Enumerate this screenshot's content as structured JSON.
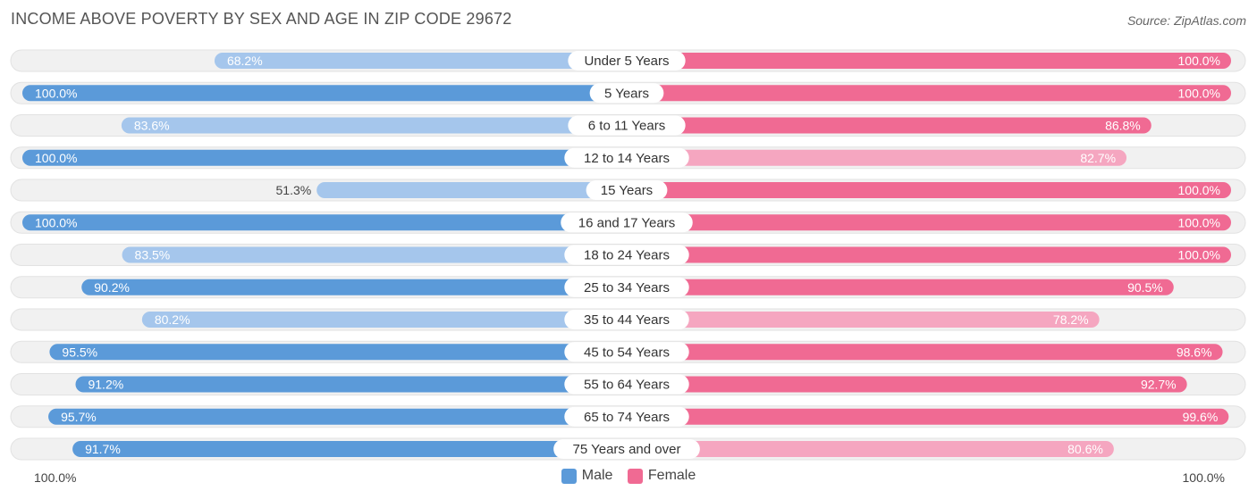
{
  "header": {
    "title": "INCOME ABOVE POVERTY BY SEX AND AGE IN ZIP CODE 29672",
    "source": "Source: ZipAtlas.com"
  },
  "colors": {
    "male_strong": "#5b9ad9",
    "male_light": "#a5c6ec",
    "female_strong": "#f06a93",
    "female_light": "#f5a6c0",
    "row_bg": "#f1f1f1"
  },
  "chart_data": {
    "type": "bar",
    "orientation": "horizontal-diverging",
    "categories": [
      "Under 5 Years",
      "5 Years",
      "6 to 11 Years",
      "12 to 14 Years",
      "15 Years",
      "16 and 17 Years",
      "18 to 24 Years",
      "25 to 34 Years",
      "35 to 44 Years",
      "45 to 54 Years",
      "55 to 64 Years",
      "65 to 74 Years",
      "75 Years and over"
    ],
    "series": [
      {
        "name": "Male",
        "values": [
          68.2,
          100.0,
          83.6,
          100.0,
          51.3,
          100.0,
          83.5,
          90.2,
          80.2,
          95.5,
          91.2,
          95.7,
          91.7
        ]
      },
      {
        "name": "Female",
        "values": [
          100.0,
          100.0,
          86.8,
          82.7,
          100.0,
          100.0,
          100.0,
          90.5,
          78.2,
          98.6,
          92.7,
          99.6,
          80.6
        ]
      }
    ],
    "value_labels": {
      "Male": [
        "68.2%",
        "100.0%",
        "83.6%",
        "100.0%",
        "51.3%",
        "100.0%",
        "83.5%",
        "90.2%",
        "80.2%",
        "95.5%",
        "91.2%",
        "95.7%",
        "91.7%"
      ],
      "Female": [
        "100.0%",
        "100.0%",
        "86.8%",
        "82.7%",
        "100.0%",
        "100.0%",
        "100.0%",
        "90.5%",
        "78.2%",
        "98.6%",
        "92.7%",
        "99.6%",
        "80.6%"
      ]
    },
    "xlim": [
      0,
      100
    ],
    "axis_labels": {
      "left": "100.0%",
      "right": "100.0%"
    },
    "legend": {
      "position": "bottom-center",
      "items": [
        "Male",
        "Female"
      ]
    }
  }
}
